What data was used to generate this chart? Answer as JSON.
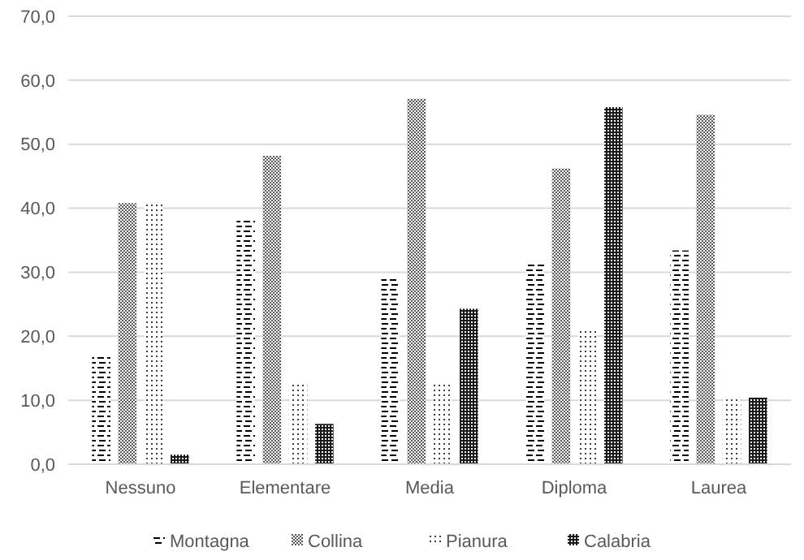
{
  "chart_data": {
    "type": "bar",
    "categories": [
      "Nessuno",
      "Elementare",
      "Media",
      "Diploma",
      "Laurea"
    ],
    "series": [
      {
        "name": "Montagna",
        "color": "#000000",
        "values": [
          17.2,
          38.5,
          29.2,
          31.4,
          33.4
        ]
      },
      {
        "name": "Collina",
        "color": "#595959",
        "values": [
          40.8,
          48.2,
          57.1,
          46.2,
          54.6
        ]
      },
      {
        "name": "Pianura",
        "color": "#404040",
        "values": [
          40.8,
          12.5,
          12.9,
          21.1,
          10.4
        ]
      },
      {
        "name": "Calabria",
        "color": "#1a1a1a",
        "values": [
          1.5,
          6.3,
          24.3,
          55.8,
          10.4
        ]
      }
    ],
    "ylim": [
      0,
      70
    ],
    "yticks": [
      {
        "value": 0,
        "label": "0,0"
      },
      {
        "value": 10,
        "label": "10,0"
      },
      {
        "value": 20,
        "label": "20,0"
      },
      {
        "value": 30,
        "label": "30,0"
      },
      {
        "value": 40,
        "label": "40,0"
      },
      {
        "value": 50,
        "label": "50,0"
      },
      {
        "value": 60,
        "label": "60,0"
      },
      {
        "value": 70,
        "label": "70,0"
      }
    ],
    "grid": "y",
    "legend": "bottom"
  }
}
